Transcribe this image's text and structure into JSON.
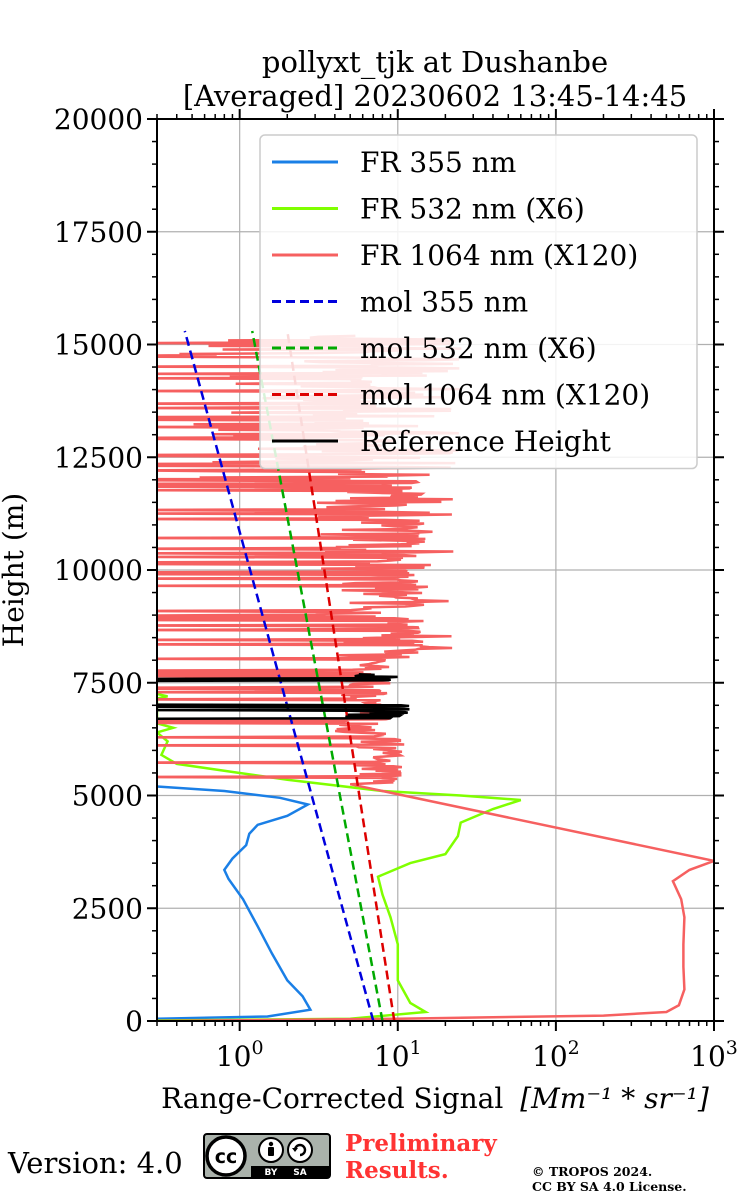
{
  "chart_data": {
    "type": "line",
    "title": "pollyxt_tjk at Dushanbe",
    "subtitle": "[Averaged] 20230602 13:45-14:45",
    "xlabel": "Range-Corrected Signal",
    "xlabel_units": "[Mm⁻¹ * sr⁻¹]",
    "ylabel": "Height (m)",
    "x_scale": "log",
    "xlim": [
      0.3,
      1000
    ],
    "ylim": [
      0,
      20000
    ],
    "grid": true,
    "legend_position": "top-right",
    "y_ticks": [
      0,
      2500,
      5000,
      7500,
      10000,
      12500,
      15000,
      17500,
      20000
    ],
    "y_tick_labels": [
      "0",
      "2500",
      "5000",
      "7500",
      "10000",
      "12500",
      "15000",
      "17500",
      "20000"
    ],
    "x_ticks": [
      1,
      10,
      100,
      1000
    ],
    "x_tick_labels": [
      {
        "base": "10",
        "exp": "0"
      },
      {
        "base": "10",
        "exp": "1"
      },
      {
        "base": "10",
        "exp": "2"
      },
      {
        "base": "10",
        "exp": "3"
      }
    ],
    "series": [
      {
        "name": "FR 355 nm",
        "color": "#1a7fe6",
        "style": "solid",
        "noisy": false,
        "points": [
          [
            0.3,
            50
          ],
          [
            1.5,
            100
          ],
          [
            2.8,
            250
          ],
          [
            2.5,
            550
          ],
          [
            2.0,
            900
          ],
          [
            1.6,
            1500
          ],
          [
            1.3,
            2100
          ],
          [
            1.05,
            2700
          ],
          [
            0.85,
            3150
          ],
          [
            0.8,
            3350
          ],
          [
            0.9,
            3600
          ],
          [
            1.1,
            3900
          ],
          [
            1.15,
            4150
          ],
          [
            1.3,
            4350
          ],
          [
            2.0,
            4550
          ],
          [
            2.7,
            4800
          ],
          [
            1.8,
            4950
          ],
          [
            0.8,
            5100
          ],
          [
            0.3,
            5200
          ]
        ]
      },
      {
        "name": "FR 532 nm (X6)",
        "color": "#80ff00",
        "style": "solid",
        "noisy": false,
        "points": [
          [
            0.3,
            10
          ],
          [
            5,
            50
          ],
          [
            15,
            200
          ],
          [
            12,
            400
          ],
          [
            10,
            900
          ],
          [
            10,
            1700
          ],
          [
            9,
            2300
          ],
          [
            8,
            2800
          ],
          [
            7.5,
            3200
          ],
          [
            12,
            3500
          ],
          [
            20,
            3700
          ],
          [
            24,
            4100
          ],
          [
            25,
            4400
          ],
          [
            40,
            4700
          ],
          [
            60,
            4900
          ],
          [
            25,
            5000
          ],
          [
            8,
            5100
          ],
          [
            2,
            5350
          ],
          [
            1,
            5500
          ],
          [
            0.4,
            5700
          ],
          [
            0.32,
            5900
          ],
          [
            0.35,
            6200
          ],
          [
            0.3,
            6400
          ],
          [
            0.38,
            6500
          ],
          [
            0.3,
            6600
          ],
          [
            0.3,
            7150
          ],
          [
            0.35,
            7200
          ],
          [
            0.3,
            7250
          ]
        ]
      },
      {
        "name": "FR 1064 nm (X120)",
        "color": "#f66060",
        "style": "solid",
        "noisy": true,
        "points": [
          [
            0.3,
            0
          ],
          [
            10,
            50
          ],
          [
            200,
            120
          ],
          [
            500,
            200
          ],
          [
            600,
            350
          ],
          [
            650,
            700
          ],
          [
            640,
            1200
          ],
          [
            640,
            1700
          ],
          [
            650,
            2300
          ],
          [
            620,
            2700
          ],
          [
            550,
            3100
          ],
          [
            700,
            3350
          ],
          [
            1000,
            3550
          ]
        ]
      },
      {
        "name": "mol 355 nm",
        "color": "#0000dd",
        "style": "dashed",
        "noisy": false,
        "points": [
          [
            7.0,
            0
          ],
          [
            0.45,
            15300
          ]
        ]
      },
      {
        "name": "mol 532 nm (X6)",
        "color": "#00aa00",
        "style": "dashed",
        "noisy": false,
        "points": [
          [
            8.0,
            0
          ],
          [
            1.2,
            15300
          ]
        ]
      },
      {
        "name": "mol 1064 nm (X120)",
        "color": "#dd0000",
        "style": "dashed",
        "noisy": false,
        "points": [
          [
            9.5,
            0
          ],
          [
            2.0,
            15300
          ]
        ]
      },
      {
        "name": "Reference Height",
        "color": "#000000",
        "style": "solid",
        "noisy": true,
        "points": []
      }
    ]
  },
  "footer": {
    "version": "Version: 4.0",
    "license_badge": {
      "cc": "cc",
      "by": "BY",
      "sa": "SA"
    },
    "preliminary": [
      "Preliminary",
      "Results."
    ],
    "copyright": [
      "© TROPOS 2024.",
      "CC BY SA 4.0 License."
    ]
  }
}
